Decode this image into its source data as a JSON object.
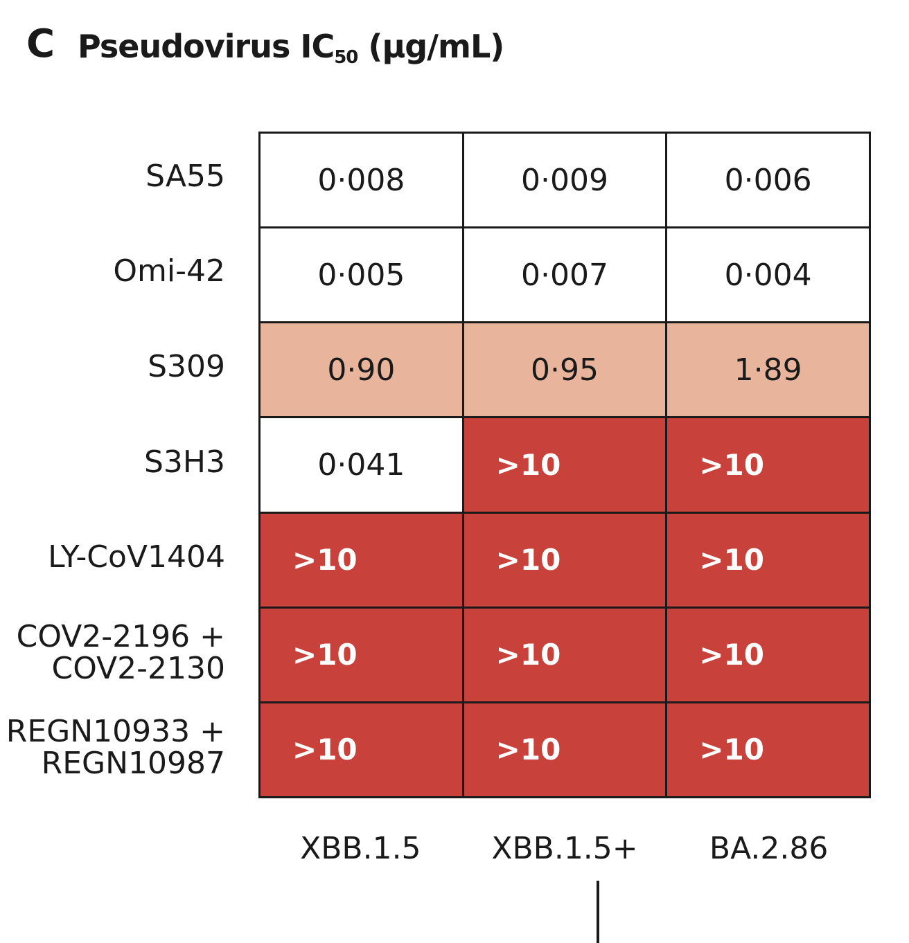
{
  "panel": {
    "letter": "C",
    "title_main": "Pseudovirus IC",
    "title_sub": "50",
    "title_unit": " (μg/mL)"
  },
  "chart_data": {
    "type": "heatmap",
    "title": "Pseudovirus IC50 (μg/mL)",
    "columns": [
      "XBB.1.5",
      "XBB.1.5+",
      "BA.2.86"
    ],
    "rows": [
      {
        "label_lines": [
          "SA55"
        ],
        "values": [
          "0·008",
          "0·009",
          "0·006"
        ],
        "levels": [
          "low",
          "low",
          "low"
        ]
      },
      {
        "label_lines": [
          "Omi-42"
        ],
        "values": [
          "0·005",
          "0·007",
          "0·004"
        ],
        "levels": [
          "low",
          "low",
          "low"
        ]
      },
      {
        "label_lines": [
          "S309"
        ],
        "values": [
          "0·90",
          "0·95",
          "1·89"
        ],
        "levels": [
          "mid",
          "mid",
          "mid"
        ]
      },
      {
        "label_lines": [
          "S3H3"
        ],
        "values": [
          "0·041",
          ">10",
          ">10"
        ],
        "levels": [
          "low",
          "high",
          "high"
        ]
      },
      {
        "label_lines": [
          "LY-CoV1404"
        ],
        "values": [
          ">10",
          ">10",
          ">10"
        ],
        "levels": [
          "high",
          "high",
          "high"
        ]
      },
      {
        "label_lines": [
          "COV2-2196 +",
          "COV2-2130"
        ],
        "values": [
          ">10",
          ">10",
          ">10"
        ],
        "levels": [
          "high",
          "high",
          "high"
        ]
      },
      {
        "label_lines": [
          "REGN10933 +",
          "REGN10987"
        ],
        "values": [
          ">10",
          ">10",
          ">10"
        ],
        "levels": [
          "high",
          "high",
          "high"
        ]
      }
    ],
    "colors": {
      "low": "#ffffff",
      "mid": "#e8b49c",
      "high": "#c8413a"
    }
  }
}
